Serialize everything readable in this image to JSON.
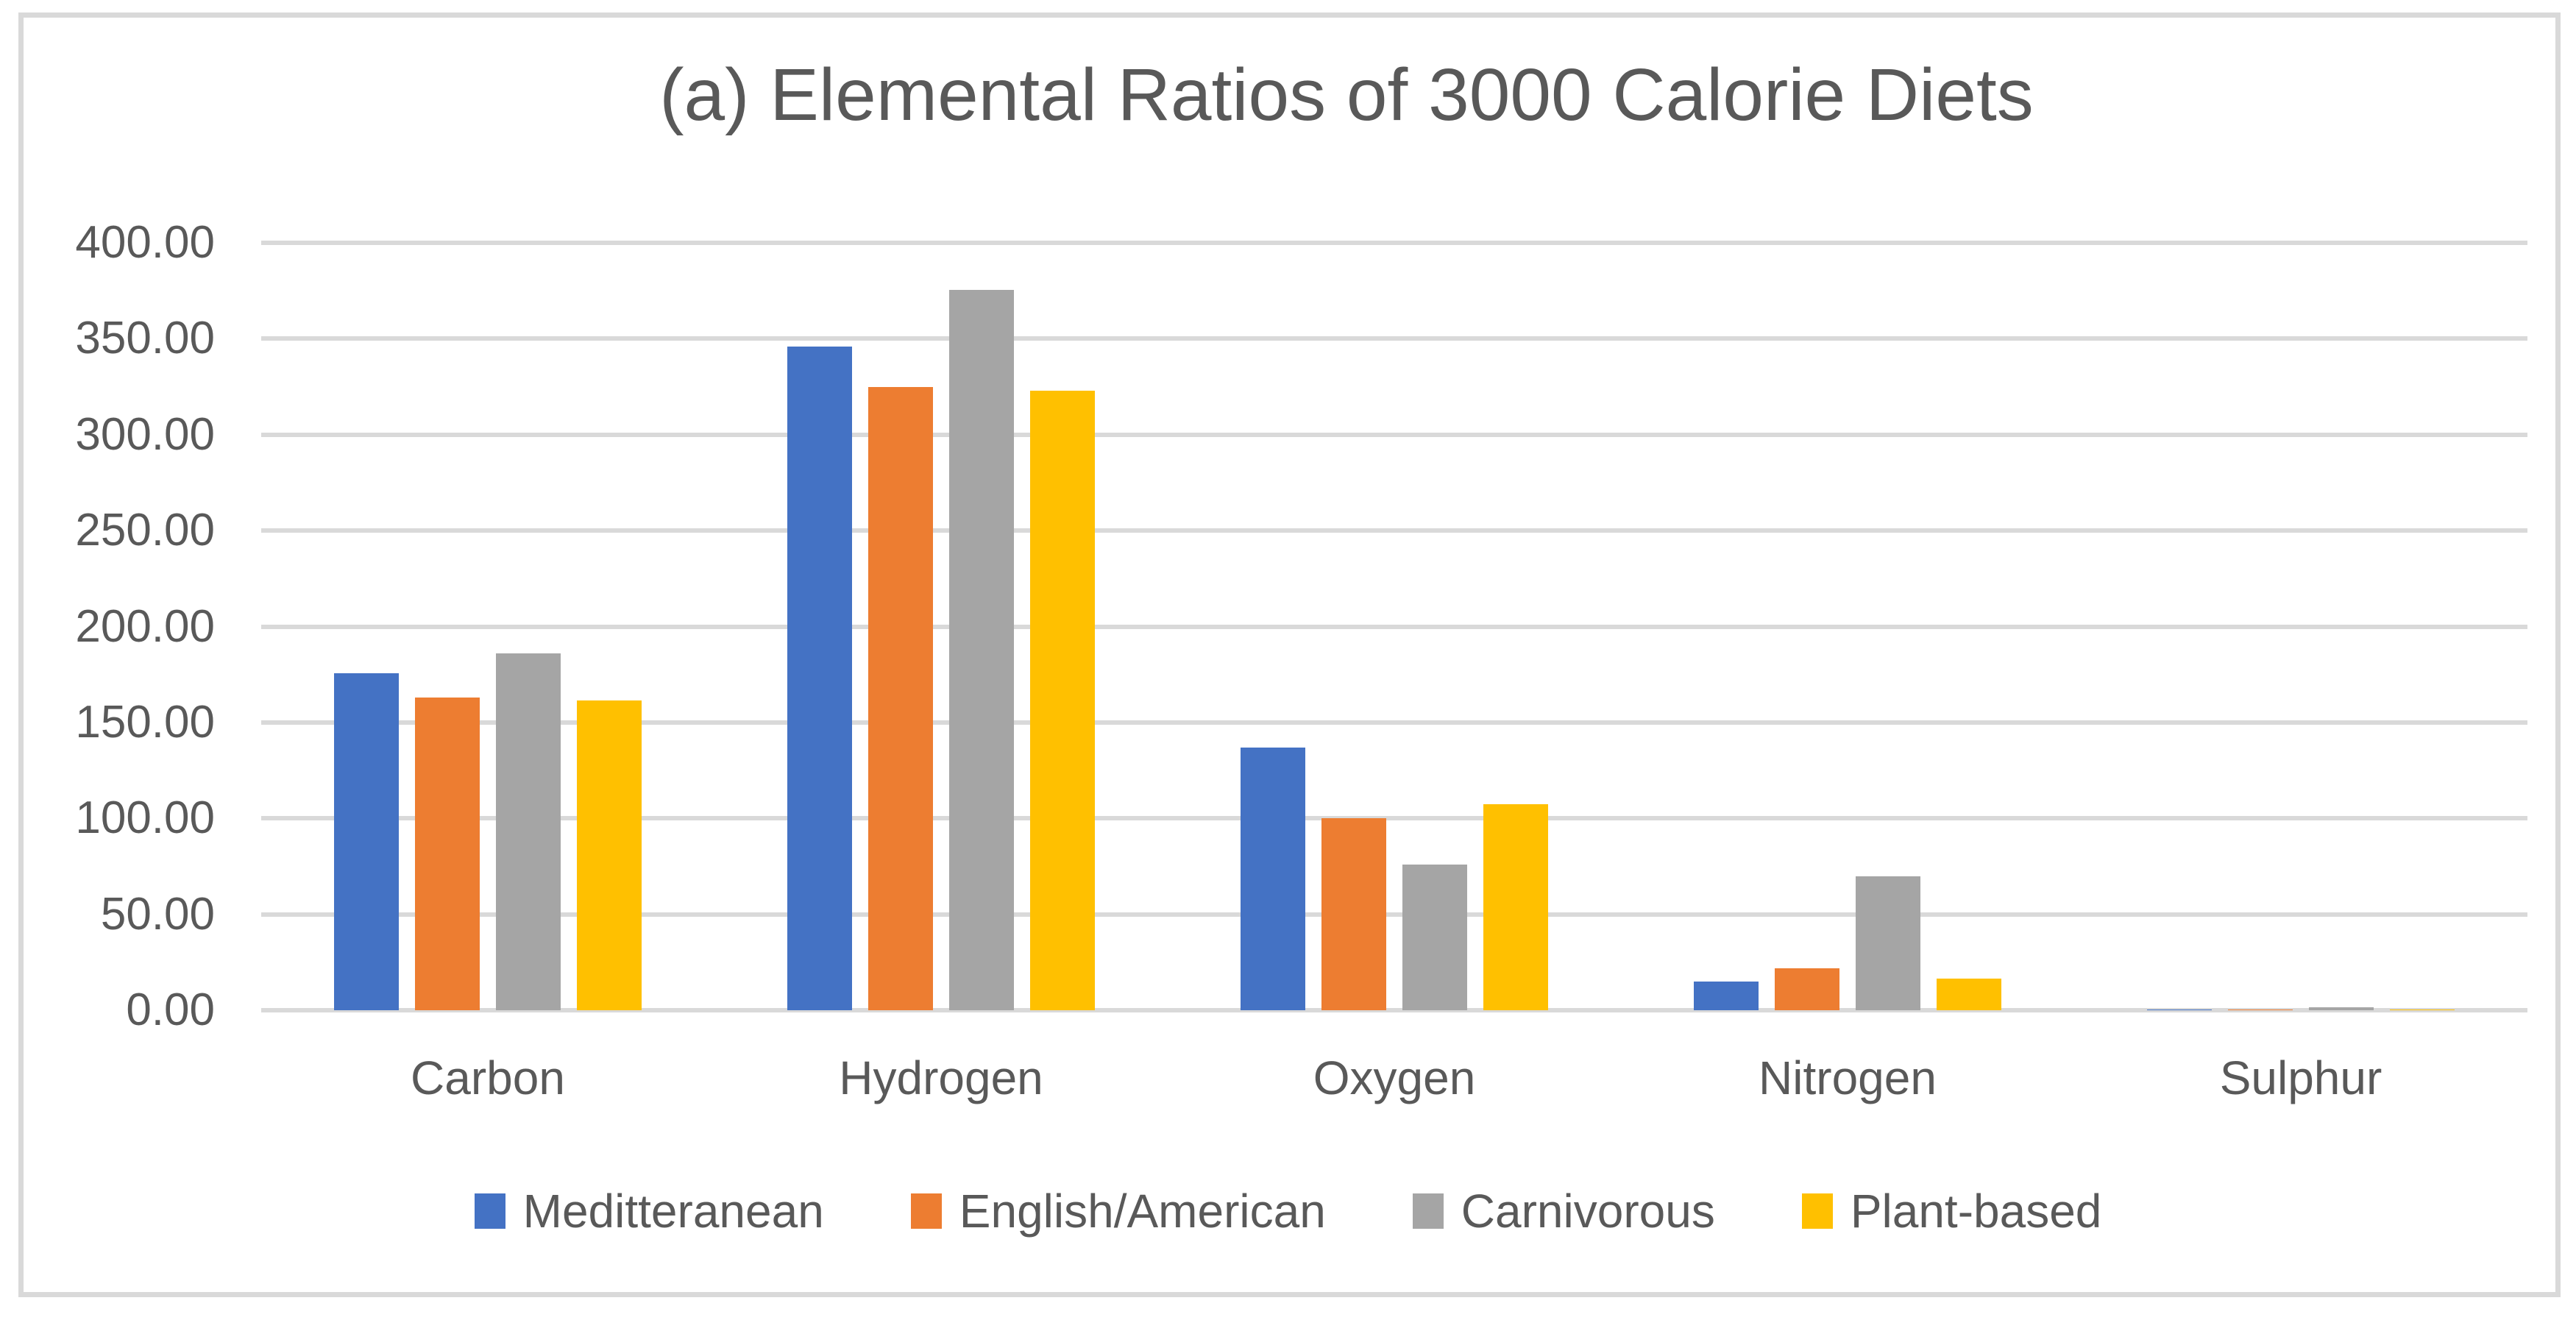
{
  "chart_data": {
    "type": "bar",
    "title": "(a) Elemental Ratios of 3000 Calorie Diets",
    "categories": [
      "Carbon",
      "Hydrogen",
      "Oxygen",
      "Nitrogen",
      "Sulphur"
    ],
    "series": [
      {
        "name": "Meditteranean",
        "color": "#4472C4",
        "values": [
          175.5,
          346,
          137,
          15,
          0.3
        ]
      },
      {
        "name": "English/American",
        "color": "#ED7D31",
        "values": [
          163,
          325,
          100,
          22,
          0.4
        ]
      },
      {
        "name": "Carnivorous",
        "color": "#A5A5A5",
        "values": [
          186,
          375.5,
          76,
          70,
          1.6
        ]
      },
      {
        "name": "Plant-based",
        "color": "#FFC000",
        "values": [
          161.5,
          323,
          107.5,
          16.5,
          0.3
        ]
      }
    ],
    "xlabel": "",
    "ylabel": "",
    "ylim": [
      0,
      400
    ],
    "y_tick_step": 50,
    "y_tick_labels": [
      "0.00",
      "50.00",
      "100.00",
      "150.00",
      "200.00",
      "250.00",
      "300.00",
      "350.00",
      "400.00"
    ],
    "grid": true,
    "legend_position": "bottom",
    "colors": {
      "gridline": "#D9D9D9",
      "border": "#D9D9D9",
      "text": "#595959",
      "background": "#FFFFFF"
    }
  }
}
